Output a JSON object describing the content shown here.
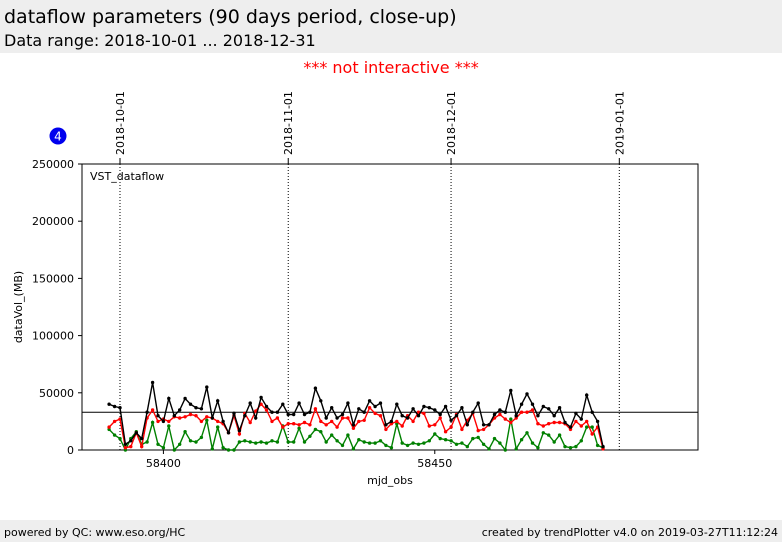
{
  "header": {
    "title": "dataflow parameters (90 days period, close-up)",
    "subtitle": "Data range: 2018-10-01 ... 2018-12-31"
  },
  "notice": "*** not interactive ***",
  "badge": "4",
  "footer": {
    "left": "powered by QC: www.eso.org/HC",
    "right": "created by trendPlotter v4.0 on 2019-03-27T11:12:24"
  },
  "colors": {
    "black_series": "#000000",
    "red_series": "#ff0000",
    "green_series": "#008000",
    "badge": "#0000ee",
    "notice": "#ff0000"
  },
  "chart_data": {
    "type": "line",
    "annotation": "VST_dataflow",
    "xlabel": "mjd_obs",
    "ylabel": "dataVol_(MB)",
    "xlim": [
      58385,
      58498.5
    ],
    "ylim": [
      0,
      250000
    ],
    "xticks": [
      58400,
      58450
    ],
    "yticks": [
      0,
      50000,
      100000,
      150000,
      200000,
      250000
    ],
    "reference_line": 33000,
    "date_markers": [
      {
        "label": "2018-10-01",
        "x": 58392
      },
      {
        "label": "2018-11-01",
        "x": 58423
      },
      {
        "label": "2018-12-01",
        "x": 58453
      },
      {
        "label": "2019-01-01",
        "x": 58484
      }
    ],
    "x": [
      58390,
      58391,
      58392,
      58393,
      58394,
      58395,
      58396,
      58397,
      58398,
      58399,
      58400,
      58401,
      58402,
      58403,
      58404,
      58405,
      58406,
      58407,
      58408,
      58409,
      58410,
      58411,
      58412,
      58413,
      58414,
      58415,
      58416,
      58417,
      58418,
      58419,
      58420,
      58421,
      58422,
      58423,
      58424,
      58425,
      58426,
      58427,
      58428,
      58429,
      58430,
      58431,
      58432,
      58433,
      58434,
      58435,
      58436,
      58437,
      58438,
      58439,
      58440,
      58441,
      58442,
      58443,
      58444,
      58445,
      58446,
      58447,
      58448,
      58449,
      58450,
      58451,
      58452,
      58453,
      58454,
      58455,
      58456,
      58457,
      58458,
      58459,
      58460,
      58461,
      58462,
      58463,
      58464,
      58465,
      58466,
      58467,
      58468,
      58469,
      58470,
      58471,
      58472,
      58473,
      58474,
      58475,
      58476,
      58477,
      58478,
      58479,
      58480,
      58481
    ],
    "series": [
      {
        "color": "#000000",
        "values": [
          40000,
          38000,
          37000,
          5000,
          8000,
          15000,
          10000,
          33000,
          59000,
          30000,
          25000,
          45000,
          30000,
          35000,
          45000,
          40000,
          37000,
          36000,
          55000,
          28000,
          43000,
          25000,
          15000,
          32000,
          17000,
          30000,
          41000,
          28000,
          46000,
          38000,
          33000,
          33000,
          40000,
          31000,
          31000,
          41000,
          31000,
          33000,
          54000,
          43000,
          28000,
          37000,
          28000,
          31000,
          41000,
          22000,
          36000,
          33000,
          43000,
          38000,
          41000,
          22000,
          25000,
          40000,
          30000,
          28000,
          36000,
          30000,
          38000,
          37000,
          35000,
          31000,
          38000,
          26000,
          30000,
          37000,
          22000,
          33000,
          41000,
          22000,
          22000,
          31000,
          35000,
          33000,
          52000,
          30000,
          40000,
          49000,
          40000,
          30000,
          38000,
          36000,
          30000,
          37000,
          24000,
          20000,
          32000,
          27000,
          48000,
          33000,
          25000,
          3000
        ]
      },
      {
        "color": "#ff0000",
        "values": [
          20000,
          25000,
          27000,
          2000,
          3000,
          15000,
          3000,
          28000,
          35000,
          25000,
          27000,
          25000,
          29000,
          28000,
          29000,
          31000,
          30000,
          25000,
          29000,
          28000,
          25000,
          23000,
          15000,
          30000,
          14000,
          32000,
          24000,
          34000,
          40000,
          35000,
          25000,
          28000,
          20000,
          23000,
          23000,
          22000,
          24000,
          22000,
          36000,
          25000,
          22000,
          25000,
          20000,
          28000,
          28000,
          19000,
          25000,
          26000,
          37000,
          32000,
          30000,
          18000,
          23000,
          25000,
          21000,
          30000,
          25000,
          33000,
          32000,
          21000,
          22000,
          28000,
          16000,
          20000,
          31000,
          18000,
          26000,
          32000,
          17000,
          18000,
          22000,
          28000,
          31000,
          27000,
          24000,
          28000,
          33000,
          33000,
          35000,
          23000,
          21000,
          23000,
          24000,
          24000,
          23000,
          18000,
          25000,
          21000,
          25000,
          14000,
          20000,
          1000
        ]
      },
      {
        "color": "#008000",
        "values": [
          18000,
          13000,
          10000,
          0,
          10000,
          16000,
          5000,
          7000,
          24000,
          5000,
          2000,
          21000,
          0,
          5000,
          16000,
          8000,
          7000,
          11000,
          26000,
          1000,
          20000,
          2000,
          0,
          0,
          7000,
          8000,
          7000,
          6000,
          7000,
          6000,
          8000,
          7000,
          21000,
          7000,
          7000,
          19000,
          7000,
          12000,
          18000,
          16000,
          7000,
          13000,
          8000,
          4000,
          13000,
          1000,
          9000,
          7000,
          6000,
          6000,
          8000,
          4000,
          2000,
          23000,
          6000,
          4000,
          6000,
          5000,
          6000,
          8000,
          14000,
          10000,
          9000,
          8000,
          5000,
          6000,
          3000,
          10000,
          11000,
          5000,
          1000,
          10000,
          6000,
          0,
          27000,
          1000,
          9000,
          15000,
          6000,
          2000,
          15000,
          13000,
          7000,
          13000,
          3000,
          2000,
          3000,
          8000,
          20000,
          20000,
          4000,
          2000
        ]
      }
    ]
  }
}
